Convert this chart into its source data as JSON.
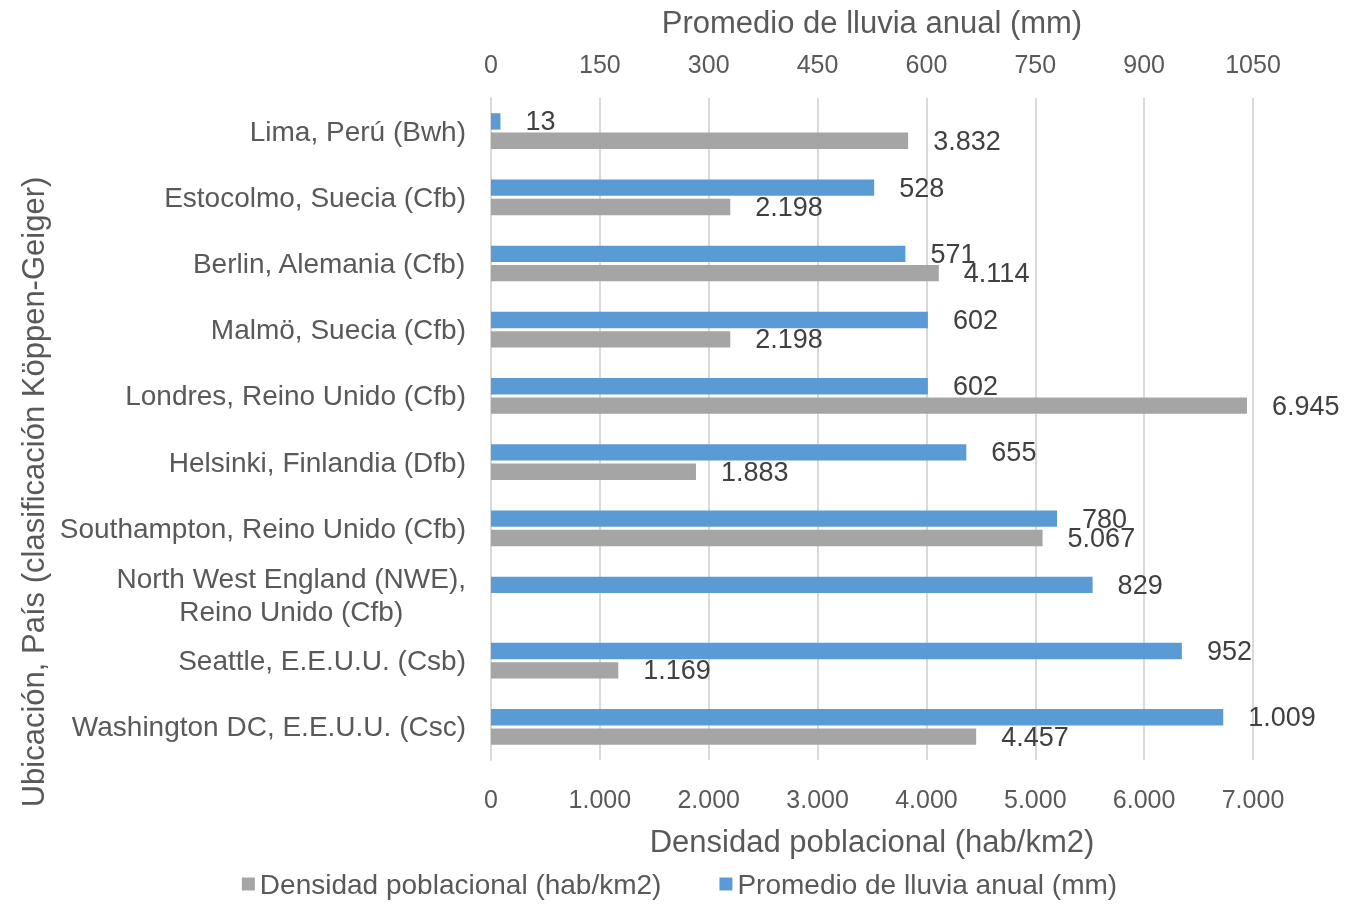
{
  "chart_data": {
    "type": "bar",
    "orientation": "horizontal",
    "xlabel": "Densidad poblacional (hab/km2)",
    "x2label": "Promedio de lluvia anual (mm)",
    "ylabel": "Ubicación, País (clasificación Köppen-Geiger)",
    "categories": [
      "Lima, Perú (Bwh)",
      "Estocolmo, Suecia (Cfb)",
      "Berlin, Alemania (Cfb)",
      "Malmö, Suecia (Cfb)",
      "Londres, Reino Unido (Cfb)",
      "Helsinki, Finlandia (Dfb)",
      "Southampton, Reino Unido (Cfb)",
      "North West England (NWE), Reino Unido (Cfb)",
      "Seattle, E.E.U.U. (Csb)",
      "Washington DC, E.E.U.U. (Csc)"
    ],
    "series": [
      {
        "name": "Densidad poblacional (hab/km2)",
        "color": "#a5a5a5",
        "values": [
          3832,
          2198,
          4114,
          2198,
          6945,
          1883,
          5067,
          null,
          1169,
          4457
        ],
        "value_labels": [
          "3.832",
          "2.198",
          "4.114",
          "2.198",
          "6.945",
          "1.883",
          "5.067",
          null,
          "1.169",
          "4.457"
        ]
      },
      {
        "name": "Promedio de lluvia anual (mm)",
        "color": "#5b9bd5",
        "axis": "x2",
        "values": [
          13,
          528,
          571,
          602,
          602,
          655,
          780,
          829,
          952,
          1009
        ],
        "value_labels": [
          "13",
          "528",
          "571",
          "602",
          "602",
          "655",
          "780",
          "829",
          "952",
          "1.009"
        ]
      }
    ],
    "xlim": [
      0,
      7000
    ],
    "xticks": [
      0,
      {
        "value": 1000,
        "label": "1.000"
      },
      {
        "value": 2000,
        "label": "2.000"
      },
      {
        "value": 3000,
        "label": "3.000"
      },
      {
        "value": 4000,
        "label": "4.000"
      },
      {
        "value": 5000,
        "label": "5.000"
      },
      {
        "value": 6000,
        "label": "6.000"
      },
      {
        "value": 7000,
        "label": "7.000"
      }
    ],
    "x2lim": [
      0,
      1050
    ],
    "x2ticks": [
      0,
      150,
      300,
      450,
      600,
      750,
      900,
      1050
    ],
    "grid": "x",
    "legend": "bottom"
  }
}
